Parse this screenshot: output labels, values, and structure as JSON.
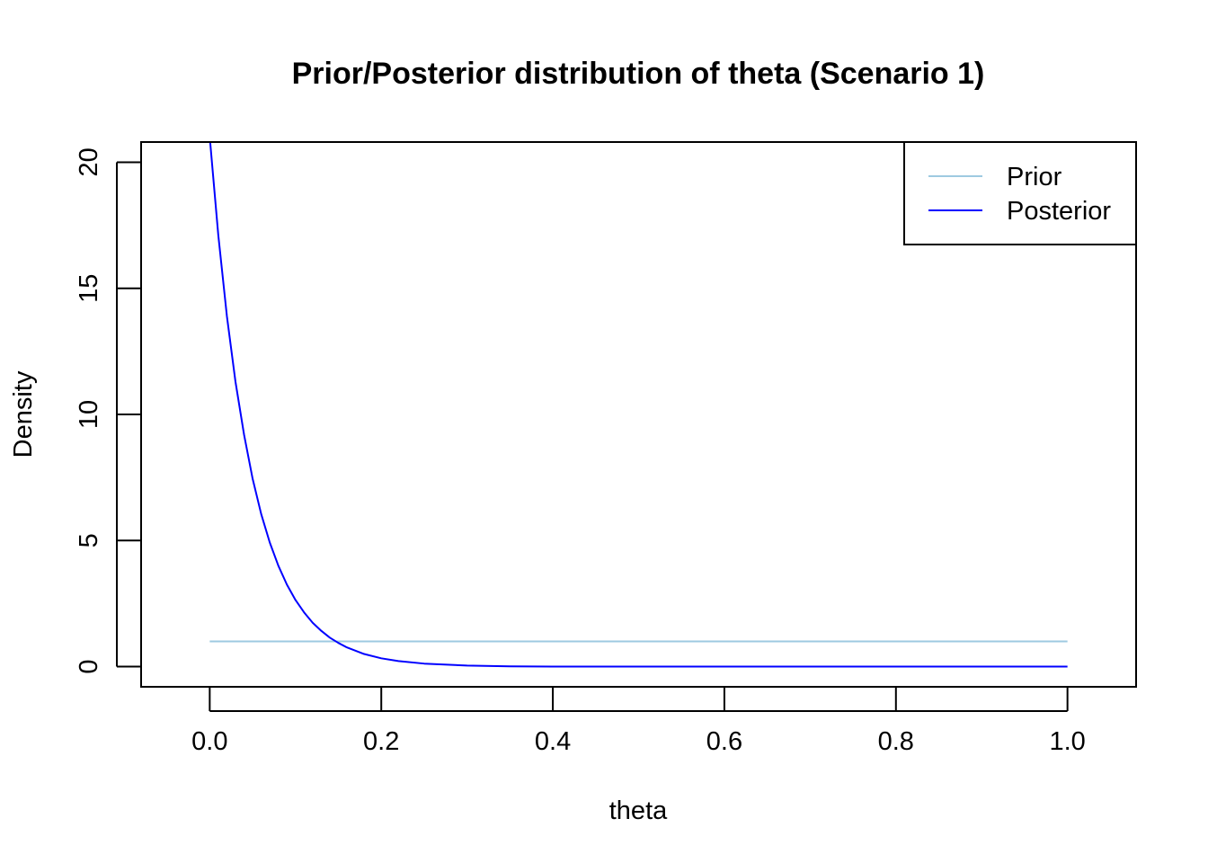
{
  "chart_data": {
    "type": "line",
    "title": "Prior/Posterior distribution of theta (Scenario 1)",
    "xlabel": "theta",
    "ylabel": "Density",
    "xlim": [
      -0.08,
      1.08
    ],
    "ylim": [
      -0.8,
      20.8
    ],
    "x_ticks": [
      "0.0",
      "0.2",
      "0.4",
      "0.6",
      "0.8",
      "1.0"
    ],
    "y_ticks": [
      "0",
      "5",
      "10",
      "15",
      "20"
    ],
    "x_tick_values": [
      0,
      0.2,
      0.4,
      0.6,
      0.8,
      1.0
    ],
    "y_tick_values": [
      0,
      5,
      10,
      15,
      20
    ],
    "legend_position": "top-right",
    "grid": false,
    "series": [
      {
        "name": "Prior",
        "color": "#9ecae1",
        "x": [
          0,
          1
        ],
        "y": [
          1,
          1
        ]
      },
      {
        "name": "Posterior",
        "color": "#0000ff",
        "x": [
          0,
          0.01,
          0.02,
          0.03,
          0.04,
          0.05,
          0.06,
          0.07,
          0.08,
          0.09,
          0.1,
          0.11,
          0.12,
          0.13,
          0.14,
          0.15,
          0.16,
          0.18,
          0.2,
          0.22,
          0.25,
          0.3,
          0.35,
          0.4,
          0.5,
          0.6,
          0.7,
          0.8,
          0.9,
          1.0
        ],
        "y": [
          21,
          17.1,
          13.9,
          11.3,
          9.2,
          7.45,
          6.05,
          4.92,
          4.0,
          3.25,
          2.64,
          2.15,
          1.74,
          1.42,
          1.15,
          0.94,
          0.76,
          0.5,
          0.33,
          0.22,
          0.12,
          0.04,
          0.01,
          0.004,
          0,
          0,
          0,
          0,
          0,
          0
        ]
      }
    ]
  }
}
